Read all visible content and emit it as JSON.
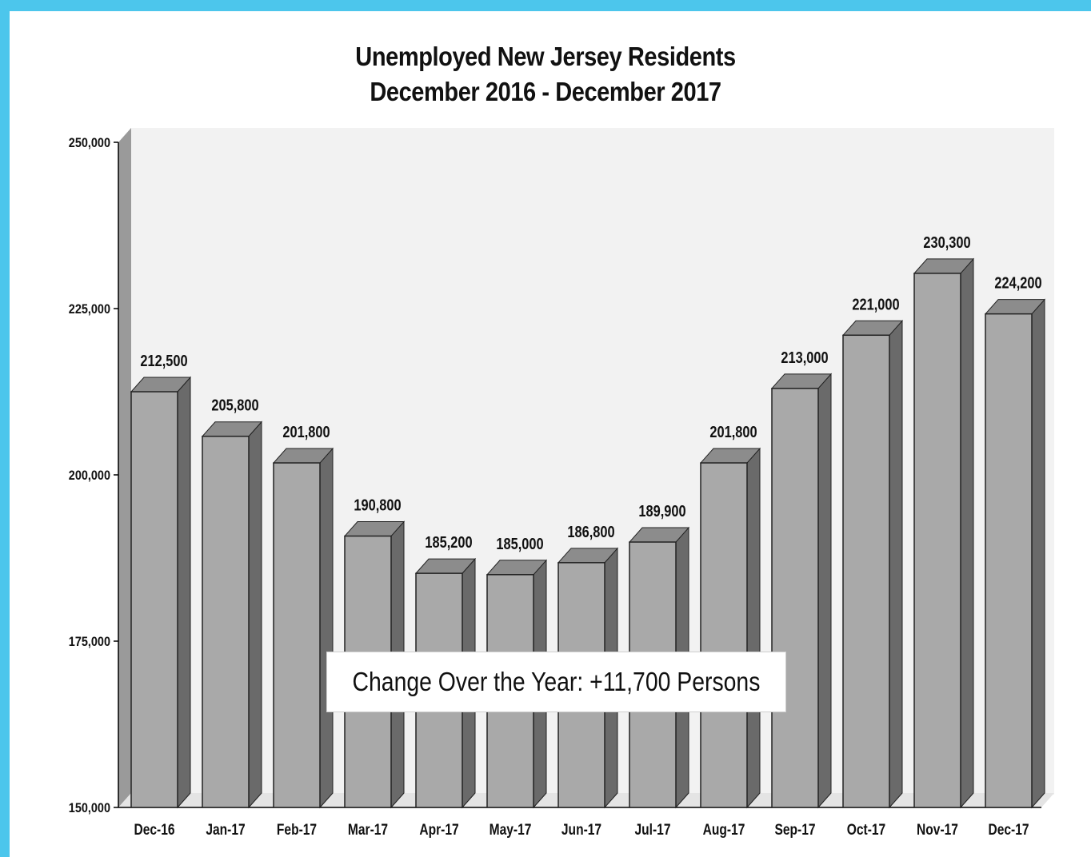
{
  "chart_data": {
    "type": "bar",
    "title": "Unemployed New Jersey Residents",
    "subtitle": "December 2016 - December 2017",
    "categories": [
      "Dec-16",
      "Jan-17",
      "Feb-17",
      "Mar-17",
      "Apr-17",
      "May-17",
      "Jun-17",
      "Jul-17",
      "Aug-17",
      "Sep-17",
      "Oct-17",
      "Nov-17",
      "Dec-17"
    ],
    "values": [
      212500,
      205800,
      201800,
      190800,
      185200,
      185000,
      186800,
      189900,
      201800,
      213000,
      221000,
      230300,
      224200
    ],
    "value_labels": [
      "212,500",
      "205,800",
      "201,800",
      "190,800",
      "185,200",
      "185,000",
      "186,800",
      "189,900",
      "201,800",
      "213,000",
      "221,000",
      "230,300",
      "224,200"
    ],
    "ylim": [
      150000,
      250000
    ],
    "yticks": [
      150000,
      175000,
      200000,
      225000,
      250000
    ],
    "ytick_labels": [
      "150,000",
      "175,000",
      "200,000",
      "225,000",
      "250,000"
    ],
    "annotation": "Change Over  the Year: +11,700 Persons",
    "grid": false,
    "colors": {
      "bar_front": "#a9a9a9",
      "bar_top": "#8c8c8c",
      "bar_side": "#6a6a6a",
      "plot_background": "#f2f2f2",
      "frame_border": "#4cc6ec"
    }
  }
}
